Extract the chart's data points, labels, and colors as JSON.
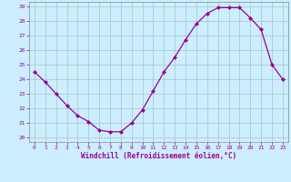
{
  "x": [
    0,
    1,
    2,
    3,
    4,
    5,
    6,
    7,
    8,
    9,
    10,
    11,
    12,
    13,
    14,
    15,
    16,
    17,
    18,
    19,
    20,
    21,
    22,
    23
  ],
  "y": [
    24.5,
    23.8,
    23.0,
    22.2,
    21.5,
    21.1,
    20.5,
    20.4,
    20.4,
    21.0,
    21.9,
    23.2,
    24.5,
    25.5,
    26.7,
    27.8,
    28.5,
    28.9,
    28.9,
    28.9,
    28.2,
    27.4,
    25.0,
    24.0
  ],
  "line_color": "#990099",
  "marker": "D",
  "marker_size": 2.0,
  "bg_color": "#cceeff",
  "grid_color": "#aacccc",
  "xlabel": "Windchill (Refroidissement éolien,°C)",
  "xlabel_color": "#990099",
  "ylim": [
    20,
    29
  ],
  "yticks": [
    20,
    21,
    22,
    23,
    24,
    25,
    26,
    27,
    28,
    29
  ],
  "xticks": [
    0,
    1,
    2,
    3,
    4,
    5,
    6,
    7,
    8,
    9,
    10,
    11,
    12,
    13,
    14,
    15,
    16,
    17,
    18,
    19,
    20,
    21,
    22,
    23
  ],
  "tick_color": "#990099",
  "spine_color": "#888888"
}
